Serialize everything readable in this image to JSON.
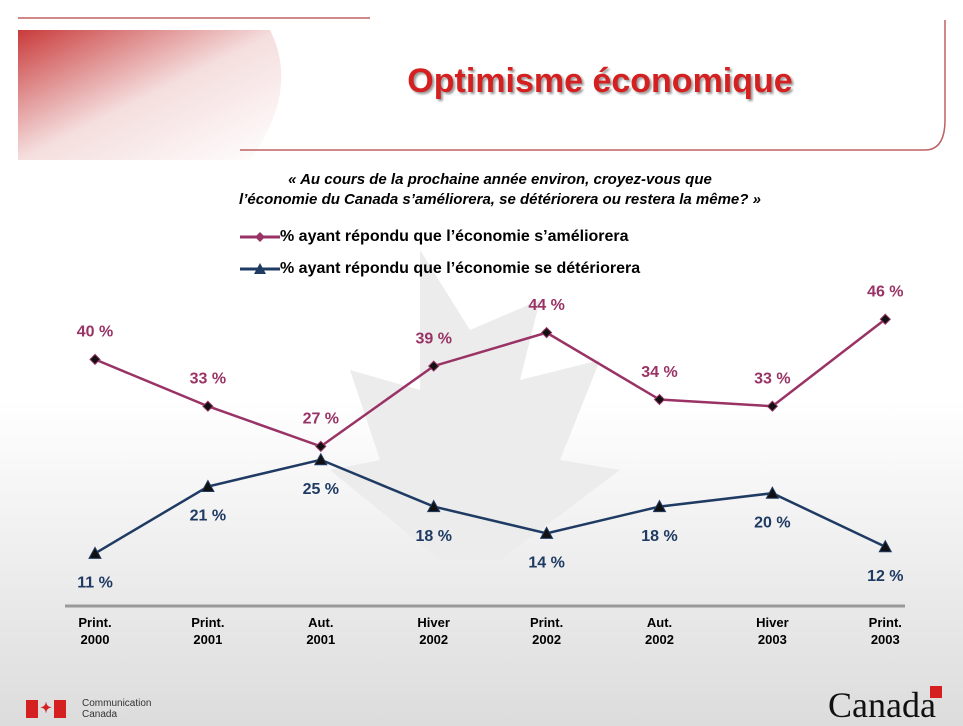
{
  "chart_data": {
    "type": "line",
    "title": "Optimisme économique",
    "subtitle": "« Au cours de la prochaine année environ, croyez-vous que\nl’économie du Canada s’améliorera, se détériorera ou restera la même? »",
    "categories": [
      "Print.\n2000",
      "Print.\n2001",
      "Aut.\n2001",
      "Hiver\n2002",
      "Print.\n2002",
      "Aut.\n2002",
      "Hiver\n2003",
      "Print.\n2003"
    ],
    "series": [
      {
        "name": "% ayant répondu que l’économie s’améliorera",
        "color": "#993366",
        "marker": "diamond",
        "values": [
          40,
          33,
          27,
          39,
          44,
          34,
          33,
          46
        ],
        "value_labels": [
          "40 %",
          "33 %",
          "27 %",
          "39 %",
          "44 %",
          "34 %",
          "33 %",
          "46 %"
        ]
      },
      {
        "name": "% ayant répondu que l’économie se détériorera",
        "color": "#1f3b63",
        "marker": "triangle",
        "values": [
          11,
          21,
          25,
          18,
          14,
          18,
          20,
          12
        ],
        "value_labels": [
          "11 %",
          "21 %",
          "25 %",
          "18 %",
          "14 %",
          "18 %",
          "20 %",
          "12 %"
        ]
      }
    ]
  },
  "footer": {
    "department": "Communication\nCanada",
    "wordmark": "Canada"
  }
}
